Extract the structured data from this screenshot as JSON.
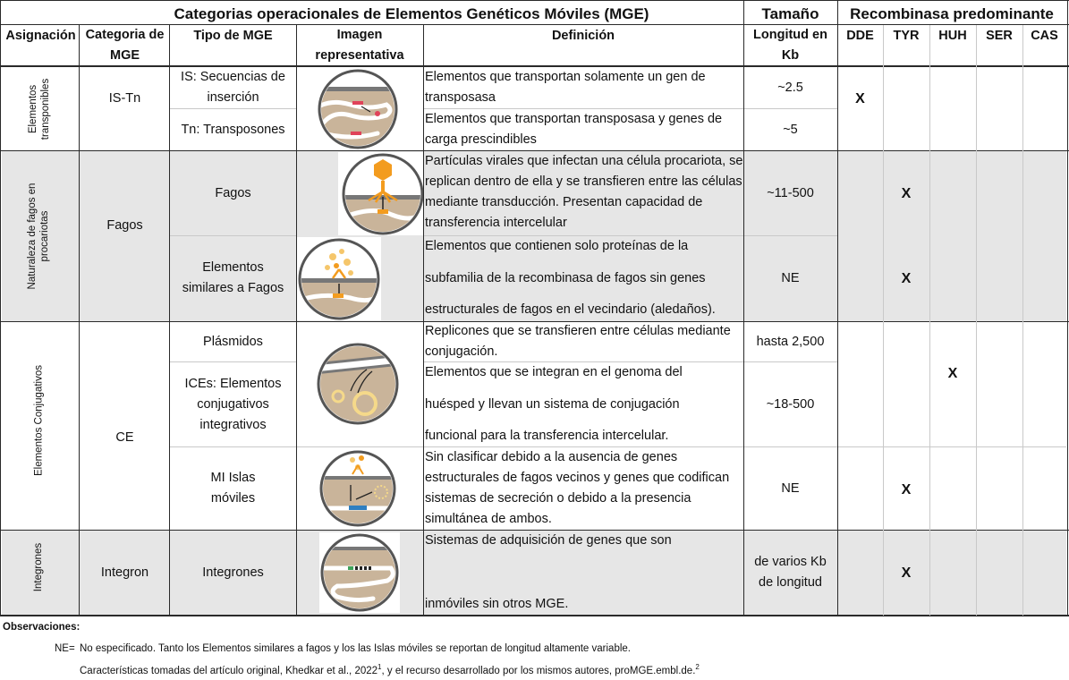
{
  "title": "Categorias operacionales de Elementos Genéticos Móviles (MGE)",
  "size_header": "Tamaño",
  "recombinase_header": "Recombinasa predominante",
  "columns": {
    "asignacion": "Asignación",
    "categoria": "Categoria de MGE",
    "tipo": "Tipo de MGE",
    "imagen": "Imagen representativa",
    "definicion": "Definición",
    "longitud": "Longitud en Kb",
    "recombinasas": [
      "DDE",
      "TYR",
      "HUH",
      "SER",
      "CAS"
    ]
  },
  "groups": [
    {
      "asignacion": "Elementos transponibles",
      "categoria": "IS-Tn",
      "rows": [
        {
          "tipo": "IS: Secuencias de inserción",
          "definicion": "Elementos que transportan solamente un gen de transposasa",
          "longitud": "~2.5"
        },
        {
          "tipo": "Tn: Transposones",
          "definicion": "Elementos que transportan transposasa y genes de carga prescindibles",
          "longitud": "~5"
        }
      ],
      "recombinasa": {
        "DDE": "X"
      },
      "image_icon": "transposon-icon"
    },
    {
      "asignacion": "Naturaleza de fagos en procariotas",
      "categoria": "Fagos",
      "rows": [
        {
          "tipo": "Fagos",
          "definicion": "Partículas virales que infectan una célula procariota, se replican dentro de ella y se transfieren entre las células mediante transducción. Presentan capacidad de transferencia intercelular",
          "longitud": "~11-500",
          "recombinasa": {
            "TYR": "X"
          },
          "image_icon": "phage-icon"
        },
        {
          "tipo": "Elementos similares a Fagos",
          "definicion_lines": [
            "Elementos que contienen solo proteínas de la",
            "subfamilia de la recombinasa de fagos sin genes",
            "estructurales de fagos en el vecindario (aledaños)."
          ],
          "longitud": "NE",
          "recombinasa": {
            "TYR": "X"
          },
          "image_icon": "phage-like-icon"
        }
      ]
    },
    {
      "asignacion": "Elementos Conjugativos",
      "categoria": "CE",
      "rows": [
        {
          "tipo": "Plásmidos",
          "definicion": "Replicones que se transfieren entre células mediante conjugación.",
          "longitud": "hasta 2,500"
        },
        {
          "tipo": "ICEs: Elementos conjugativos integrativos",
          "definicion_lines": [
            "Elementos que se integran en el genoma del",
            "huésped y llevan un sistema de conjugación",
            "funcional para la transferencia intercelular."
          ],
          "longitud": "~18-500"
        },
        {
          "tipo": "MI Islas móviles",
          "definicion": "Sin clasificar debido a la ausencia de genes estructurales de fagos vecinos y genes que codifican sistemas de secreción o debido a la presencia simultánea de ambos.",
          "longitud": "NE",
          "recombinasa": {
            "TYR": "X"
          },
          "image_icon": "mobile-island-icon"
        }
      ],
      "recombinasa": {
        "HUH": "X"
      },
      "image_icon": "conjugation-icon"
    },
    {
      "asignacion": "Integrones",
      "categoria": "Integron",
      "rows": [
        {
          "tipo": "Integrones",
          "definicion_lines": [
            "Sistemas de adquisición de genes que son",
            "inmóviles sin otros MGE."
          ],
          "longitud": "de varios Kb de longitud",
          "recombinasa": {
            "TYR": "X"
          },
          "image_icon": "integron-icon"
        }
      ]
    }
  ],
  "observations": {
    "label": "Observaciones:",
    "ne_key": "NE=",
    "ne_text": "No especificado. Tanto los Elementos similares a fagos y los las Islas móviles se reportan de longitud altamente variable.",
    "source_text": "Características tomadas del artículo original, Khedkar et al., 2022",
    "source_sup": "1",
    "source_text2": ", y el recurso desarrollado por los mismos autores, proMGE.embl.de.",
    "source_sup2": "2"
  },
  "colors": {
    "grey_band": "#e6e6e6",
    "icon_tan": "#c9b49a",
    "icon_orange": "#f39c1f",
    "icon_red": "#e0435a",
    "icon_blue": "#2f7fc1",
    "icon_green": "#3fa35a"
  }
}
